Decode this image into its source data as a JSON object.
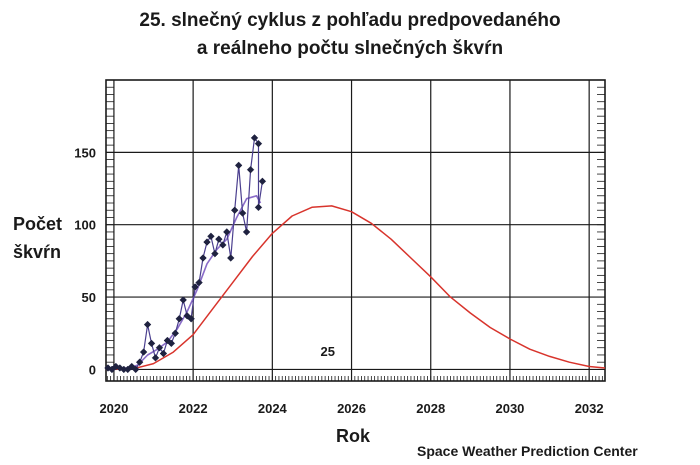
{
  "title_line1": "25. slnečný cyklus z pohľadu predpovedaného",
  "title_line2": "a reálneho počtu slnečných škvŕn",
  "source": "Space Weather Prediction Center",
  "chart_data": {
    "type": "line",
    "title": "25. slnečný cyklus z pohľadu predpovedaného a reálneho počtu slnečných škvŕn",
    "xlabel": "Rok",
    "ylabel": "Počet škvŕn",
    "ylabel_lines": [
      "Počet",
      "škvŕn"
    ],
    "xlim": [
      2019.8,
      2032.4
    ],
    "ylim": [
      -8,
      200
    ],
    "x_ticks": [
      2020,
      2022,
      2024,
      2026,
      2028,
      2030,
      2032
    ],
    "y_ticks": [
      0,
      50,
      100,
      150
    ],
    "grid": true,
    "annotation": "25",
    "annotation_x": 2025.4,
    "annotation_y": 8,
    "colors": {
      "observed": "#4b3f8f",
      "markers": "#1f2240",
      "predicted": "#d8342c",
      "grid": "#1a1a1a"
    },
    "series": [
      {
        "kind": "observed-monthly",
        "x": [
          2019.85,
          2019.95,
          2020.05,
          2020.15,
          2020.25,
          2020.35,
          2020.45,
          2020.55,
          2020.65,
          2020.75,
          2020.85,
          2020.95,
          2021.05,
          2021.15,
          2021.25,
          2021.35,
          2021.45,
          2021.55,
          2021.65,
          2021.75,
          2021.85,
          2021.95,
          2022.05,
          2022.15,
          2022.25,
          2022.35,
          2022.45,
          2022.55,
          2022.65,
          2022.75,
          2022.85,
          2022.95,
          2023.05,
          2023.15,
          2023.25,
          2023.35,
          2023.45,
          2023.55,
          2023.65
        ],
        "values": [
          1,
          0,
          2,
          1,
          0,
          0,
          2,
          0,
          5,
          12,
          31,
          18,
          8,
          15,
          11,
          20,
          18,
          25,
          35,
          48,
          37,
          35,
          57,
          60,
          77,
          88,
          92,
          80,
          90,
          86,
          95,
          77,
          110,
          141,
          108,
          95,
          138,
          160,
          156
        ]
      },
      {
        "kind": "observed-smoothed",
        "x": [
          2019.85,
          2020.1,
          2020.35,
          2020.6,
          2020.85,
          2021.1,
          2021.35,
          2021.6,
          2021.85,
          2022.1,
          2022.35,
          2022.6,
          2022.85,
          2023.1,
          2023.35,
          2023.6,
          2023.7
        ],
        "values": [
          1,
          1,
          1,
          3,
          10,
          14,
          19,
          28,
          40,
          55,
          73,
          83,
          90,
          105,
          118,
          120,
          115
        ]
      },
      {
        "kind": "predicted",
        "x": [
          2019.8,
          2020.0,
          2020.5,
          2021.0,
          2021.5,
          2022.0,
          2022.5,
          2023.0,
          2023.5,
          2024.0,
          2024.5,
          2025.0,
          2025.5,
          2026.0,
          2026.5,
          2027.0,
          2027.5,
          2028.0,
          2028.5,
          2029.0,
          2029.5,
          2030.0,
          2030.5,
          2031.0,
          2031.5,
          2032.0,
          2032.4
        ],
        "values": [
          0,
          0,
          0.5,
          4,
          12,
          24,
          42,
          60,
          78,
          94,
          106,
          112,
          113,
          109,
          101,
          90,
          77,
          64,
          50,
          39,
          29,
          21,
          14,
          9,
          5,
          2,
          1
        ]
      }
    ],
    "observed_tail": {
      "x": [
        2023.65,
        2023.75
      ],
      "values": [
        112,
        130
      ]
    }
  }
}
